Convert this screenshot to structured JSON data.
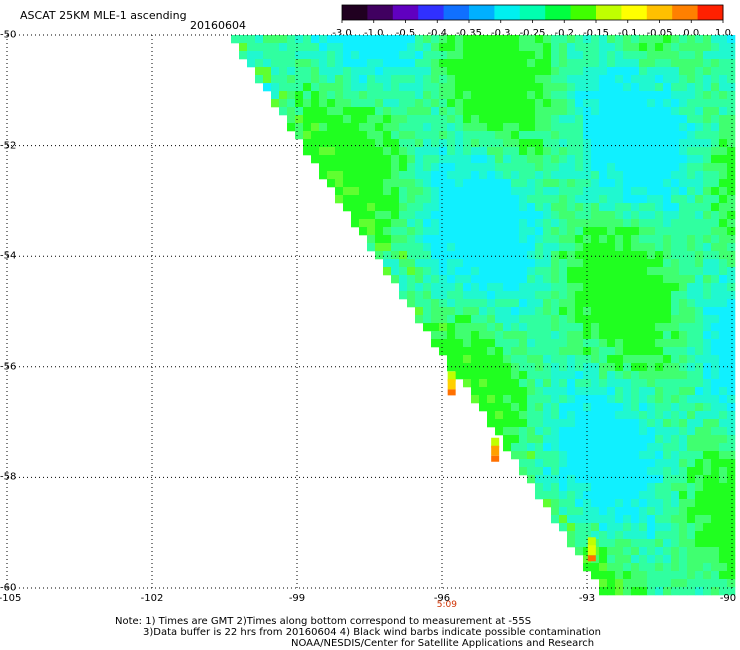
{
  "header": {
    "title": "ASCAT 25KM MLE-1 ascending",
    "date": "20160604"
  },
  "colorbar": {
    "ticks": [
      "-3.0",
      "-1.0",
      "-0.5",
      "-0.4",
      "-0.35",
      "-0.3",
      "-0.25",
      "-0.2",
      "-0.15",
      "-0.1",
      "-0.05",
      "0.0",
      "1.0"
    ],
    "colors": [
      "#200020",
      "#400060",
      "#6000c0",
      "#3030ff",
      "#1070ff",
      "#00b0ff",
      "#00f0f0",
      "#00ffb0",
      "#00ff40",
      "#40ff00",
      "#c0ff00",
      "#ffff00",
      "#ffc000",
      "#ff8000",
      "#ff2000"
    ]
  },
  "chart_data": {
    "type": "heatmap",
    "title": "ASCAT 25KM MLE-1 ascending",
    "x_axis": {
      "ticks": [
        "-105",
        "-102",
        "-99",
        "-96",
        "-93",
        "-90"
      ],
      "range": [
        -105,
        -90
      ]
    },
    "y_axis": {
      "ticks": [
        "-50",
        "-52",
        "-54",
        "-56",
        "-58",
        "-60"
      ],
      "range": [
        -60,
        -50
      ]
    },
    "time_label": {
      "text": "5:09",
      "lon": -95.9
    },
    "grid": true,
    "swath": "triangle bounded by the diagonal from (-100.3,-50) to (-92.6,-60) on the west, longitude -90 on the east and latitude -60 on the south",
    "dominant_values": "-0.25 to -0.15 (cyan-green)",
    "hotspots": [
      {
        "lon": -95.8,
        "lat": -56.3,
        "value": -0.05
      },
      {
        "lon": -94.9,
        "lat": -57.5,
        "value": 0.0
      },
      {
        "lon": -92.9,
        "lat": -59.3,
        "value": -0.1
      }
    ]
  },
  "notes": {
    "line1": "Note: 1) Times are GMT 2)Times along bottom correspond to measurement at -55S",
    "line2": "3)Data buffer is 22 hrs from 20160604 4) Black wind barbs indicate possible contamination",
    "line3": "NOAA/NESDIS/Center for Satellite Applications and Research"
  }
}
